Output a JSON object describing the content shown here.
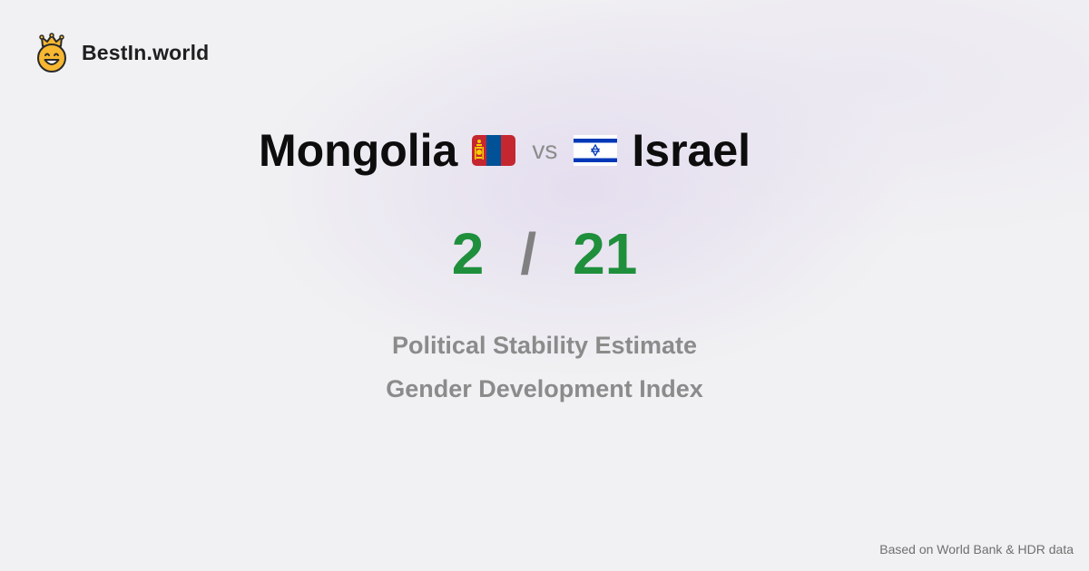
{
  "brand": {
    "name": "BestIn.world",
    "logo_icon": "crowned-smiley-icon"
  },
  "comparison": {
    "country_a": "Mongolia",
    "country_a_flag": "mongolia-flag-icon",
    "vs_label": "vs",
    "country_b": "Israel",
    "country_b_flag": "israel-flag-icon"
  },
  "scores": {
    "value_a": "2",
    "separator": "/",
    "value_b": "21"
  },
  "metrics": [
    "Political Stability Estimate",
    "Gender Development Index"
  ],
  "footer": {
    "source": "Based on World Bank & HDR data"
  },
  "colors": {
    "score_green": "#1f8f3c",
    "muted_gray": "#8b8b8b",
    "background": "#f1f1f3",
    "mongolia_red": "#c4272f",
    "mongolia_blue": "#015197",
    "mongolia_soyombo": "#f9cf02",
    "israel_blue": "#0038b8"
  }
}
